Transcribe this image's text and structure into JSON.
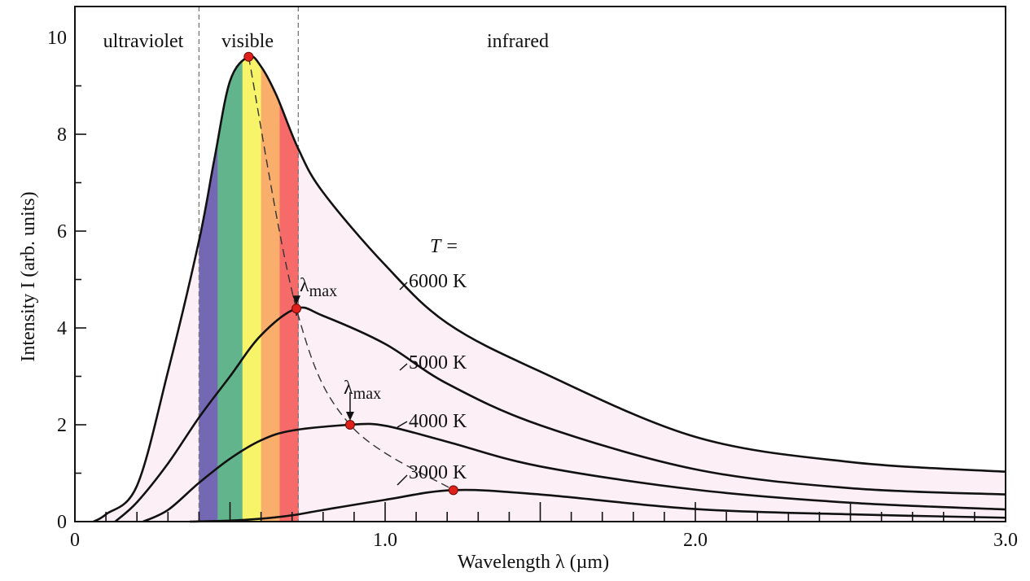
{
  "chart_data": {
    "type": "line",
    "title": "",
    "xlabel": "Wavelength λ (µm)",
    "ylabel": "Intensity I (arb. units)",
    "xlim": [
      0,
      3.0
    ],
    "ylim": [
      0,
      10
    ],
    "x_tick_labels": [
      {
        "v": 0,
        "t": "0"
      },
      {
        "v": 1,
        "t": "1.0"
      },
      {
        "v": 2,
        "t": "2.0"
      },
      {
        "v": 3,
        "t": "3.0"
      }
    ],
    "y_tick_labels": [
      {
        "v": 0,
        "t": "0"
      },
      {
        "v": 2,
        "t": "2"
      },
      {
        "v": 4,
        "t": "4"
      },
      {
        "v": 6,
        "t": "6"
      },
      {
        "v": 8,
        "t": "8"
      },
      {
        "v": 10,
        "t": "10"
      }
    ],
    "x_minor_step": 0.1,
    "y_minor_step": 1,
    "grid": false,
    "regions": [
      {
        "label": "ultraviolet",
        "from": 0,
        "to": 0.4
      },
      {
        "label": "visible",
        "from": 0.4,
        "to": 0.72
      },
      {
        "label": "infrared",
        "from": 0.72,
        "to": 3.0
      }
    ],
    "visible_bands": [
      {
        "color": "#7468b4",
        "from": 0.4,
        "to": 0.46
      },
      {
        "color": "#62b48c",
        "from": 0.46,
        "to": 0.54
      },
      {
        "color": "#f8f46a",
        "from": 0.54,
        "to": 0.6
      },
      {
        "color": "#f9ae6c",
        "from": 0.6,
        "to": 0.66
      },
      {
        "color": "#f76a6a",
        "from": 0.66,
        "to": 0.72
      }
    ],
    "fill_color": "#fcf0f6",
    "temperature_prefix": "T =",
    "series": [
      {
        "name": "6000 K",
        "peak": [
          0.56,
          9.6
        ],
        "points": [
          [
            0.06,
            0
          ],
          [
            0.1,
            0.15
          ],
          [
            0.2,
            0.74
          ],
          [
            0.3,
            3.1
          ],
          [
            0.4,
            5.8
          ],
          [
            0.45,
            7.5
          ],
          [
            0.5,
            9.1
          ],
          [
            0.56,
            9.6
          ],
          [
            0.6,
            9.4
          ],
          [
            0.65,
            8.8
          ],
          [
            0.72,
            7.7
          ],
          [
            0.8,
            6.8
          ],
          [
            1.0,
            5.3
          ],
          [
            1.2,
            4.1
          ],
          [
            1.5,
            3.1
          ],
          [
            2.0,
            1.75
          ],
          [
            2.5,
            1.23
          ],
          [
            3.0,
            1.03
          ]
        ]
      },
      {
        "name": "5000 K",
        "peak": [
          0.714,
          4.4
        ],
        "points": [
          [
            0.13,
            0
          ],
          [
            0.2,
            0.4
          ],
          [
            0.3,
            1.2
          ],
          [
            0.4,
            2.15
          ],
          [
            0.5,
            3.0
          ],
          [
            0.6,
            3.85
          ],
          [
            0.714,
            4.4
          ],
          [
            0.8,
            4.25
          ],
          [
            1.0,
            3.67
          ],
          [
            1.2,
            2.85
          ],
          [
            1.5,
            1.99
          ],
          [
            2.0,
            1.08
          ],
          [
            2.5,
            0.69
          ],
          [
            3.0,
            0.56
          ]
        ]
      },
      {
        "name": "4000 K",
        "peak": [
          0.887,
          2.0
        ],
        "points": [
          [
            0.22,
            0
          ],
          [
            0.3,
            0.24
          ],
          [
            0.4,
            0.8
          ],
          [
            0.5,
            1.3
          ],
          [
            0.6,
            1.68
          ],
          [
            0.7,
            1.88
          ],
          [
            0.887,
            2.0
          ],
          [
            1.0,
            1.98
          ],
          [
            1.2,
            1.65
          ],
          [
            1.5,
            1.14
          ],
          [
            2.0,
            0.66
          ],
          [
            2.5,
            0.39
          ],
          [
            3.0,
            0.25
          ]
        ]
      },
      {
        "name": "3000 K",
        "peak": [
          1.22,
          0.65
        ],
        "points": [
          [
            0.37,
            0
          ],
          [
            0.5,
            0.02
          ],
          [
            0.6,
            0.06
          ],
          [
            0.7,
            0.13
          ],
          [
            0.8,
            0.24
          ],
          [
            1.0,
            0.45
          ],
          [
            1.22,
            0.65
          ],
          [
            1.5,
            0.56
          ],
          [
            2.0,
            0.26
          ],
          [
            2.5,
            0.15
          ],
          [
            3.0,
            0.08
          ]
        ]
      }
    ],
    "peak_label": "λ",
    "peak_label_sub": "max",
    "peak_marker_color": "#e0201a"
  }
}
